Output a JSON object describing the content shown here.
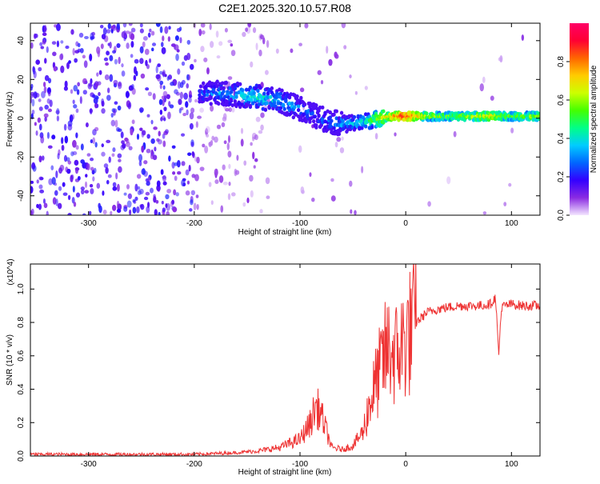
{
  "title": "C2E1.2025.320.10.57.R08",
  "colors": {
    "snr_line": "#ee3333",
    "ridge_low": "#6a00ff",
    "ridge_mid": "#00ddee",
    "ridge_high": "#ff0033"
  },
  "chart_data": [
    {
      "type": "heatmap",
      "xlabel": "Height of straight line (km)",
      "ylabel": "Frequency (Hz)",
      "xlim": [
        -355,
        127
      ],
      "ylim": [
        -50,
        49
      ],
      "xticks": [
        -300,
        -200,
        -100,
        0,
        100
      ],
      "yticks": [
        -40,
        -20,
        0,
        20,
        40
      ],
      "colorbar": {
        "label": "Normalized spectral amplitude",
        "range": [
          0,
          1
        ],
        "ticks": [
          "0.0",
          "0.2",
          "0.4",
          "0.6",
          "0.8"
        ],
        "colors": [
          "#f3e6ff",
          "#8a2be2",
          "#3300ff",
          "#0066ff",
          "#00ccff",
          "#00ff88",
          "#44ff00",
          "#ccff00",
          "#ffcc00",
          "#ff6600",
          "#ff0033",
          "#ff0066"
        ]
      },
      "ridge": {
        "height_km": [
          -195,
          -180,
          -160,
          -140,
          -120,
          -100,
          -85,
          -70,
          -55,
          -40,
          -25,
          -10,
          0,
          20,
          40,
          60,
          80,
          100,
          127
        ],
        "frequency_hz": [
          12,
          13,
          12,
          11,
          9,
          5,
          1,
          -2,
          -3,
          -2,
          0,
          1,
          1,
          1,
          1,
          1,
          1,
          1,
          1
        ],
        "amplitude": [
          0.25,
          0.3,
          0.35,
          0.4,
          0.35,
          0.3,
          0.25,
          0.3,
          0.35,
          0.4,
          0.6,
          0.8,
          0.9,
          0.6,
          0.55,
          0.6,
          0.7,
          0.55,
          0.6
        ]
      }
    },
    {
      "type": "line",
      "xlabel": "Height of straight line (km)",
      "ylabel": "SNR (10 * v/v)",
      "y_multiplier": "(x10^4)",
      "xlim": [
        -355,
        127
      ],
      "ylim": [
        0,
        1.15
      ],
      "xticks": [
        -300,
        -200,
        -100,
        0,
        100
      ],
      "yticks": [
        "0.0",
        "0.2",
        "0.4",
        "0.6",
        "0.8",
        "1.0"
      ],
      "series": [
        {
          "x": [
            -355,
            -300,
            -250,
            -200,
            -160,
            -140,
            -120,
            -100,
            -90,
            -85,
            -80,
            -75,
            -70,
            -60,
            -50,
            -40,
            -35,
            -30,
            -25,
            -20,
            -15,
            -10,
            -5,
            0,
            10,
            20,
            30,
            50,
            70,
            80,
            85,
            88,
            90,
            92,
            95,
            100,
            110,
            120,
            127
          ],
          "y": [
            0.01,
            0.01,
            0.01,
            0.01,
            0.02,
            0.03,
            0.05,
            0.1,
            0.2,
            0.3,
            0.25,
            0.15,
            0.05,
            0.04,
            0.06,
            0.15,
            0.3,
            0.4,
            0.5,
            0.6,
            0.65,
            0.6,
            0.65,
            0.7,
            0.8,
            0.86,
            0.88,
            0.9,
            0.9,
            0.91,
            0.95,
            0.6,
            0.85,
            0.9,
            0.9,
            0.91,
            0.9,
            0.9,
            0.9
          ]
        }
      ]
    }
  ]
}
